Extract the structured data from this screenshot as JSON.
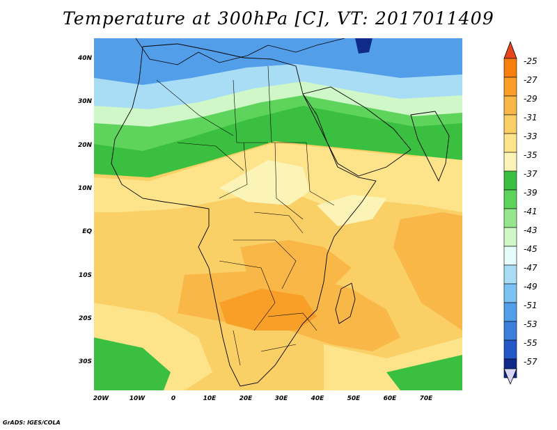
{
  "title": "Temperature at 300hPa [C], VT: 2017011409",
  "credit": "GrADS: IGES/COLA",
  "map": {
    "lat_range": [
      -36,
      45
    ],
    "lon_range": [
      -23,
      79
    ],
    "lat_labels": [
      {
        "text": "40N",
        "lat": 40
      },
      {
        "text": "30N",
        "lat": 30
      },
      {
        "text": "20N",
        "lat": 20
      },
      {
        "text": "10N",
        "lat": 10
      },
      {
        "text": "EQ",
        "lat": 0
      },
      {
        "text": "10S",
        "lat": -10
      },
      {
        "text": "20S",
        "lat": -20
      },
      {
        "text": "30S",
        "lat": -30
      }
    ],
    "lon_labels": [
      {
        "text": "20W",
        "lon": -20
      },
      {
        "text": "10W",
        "lon": -10
      },
      {
        "text": "0",
        "lon": 0
      },
      {
        "text": "10E",
        "lon": 10
      },
      {
        "text": "20E",
        "lon": 20
      },
      {
        "text": "30E",
        "lon": 30
      },
      {
        "text": "40E",
        "lon": 40
      },
      {
        "text": "50E",
        "lon": 50
      },
      {
        "text": "60E",
        "lon": 60
      },
      {
        "text": "70E",
        "lon": 70
      }
    ]
  },
  "colorbar": {
    "levels": [
      "-25",
      "-27",
      "-29",
      "-31",
      "-33",
      "-35",
      "-37",
      "-39",
      "-41",
      "-43",
      "-45",
      "-47",
      "-49",
      "-51",
      "-53",
      "-55",
      "-57"
    ],
    "colors": [
      "#e8451a",
      "#f77f0f",
      "#f99f28",
      "#f9b748",
      "#f9cf66",
      "#fde48a",
      "#fcf4b6",
      "#3bbf41",
      "#5fd45c",
      "#96e68d",
      "#cff7c7",
      "#e6fcfa",
      "#a9dcf5",
      "#7cc2f2",
      "#529ee8",
      "#3b7edc",
      "#2458c8",
      "#0f2a88"
    ],
    "top_color": "#e8451a",
    "bottom_color": "#d8d6f5"
  },
  "field_colors": {
    "c25": "#f77f0f",
    "c27": "#f99f28",
    "c29": "#f9b748",
    "c31": "#f9cf66",
    "c33": "#fde48a",
    "c35": "#fcf4b6",
    "c37": "#3bbf41",
    "c39": "#5fd45c",
    "c41": "#96e68d",
    "c43": "#cff7c7",
    "c45": "#e6fcfa",
    "c47": "#a9dcf5",
    "c49": "#7cc2f2",
    "c51": "#529ee8",
    "c53": "#3b7edc",
    "c55": "#2458c8",
    "c57": "#0f2a88"
  }
}
